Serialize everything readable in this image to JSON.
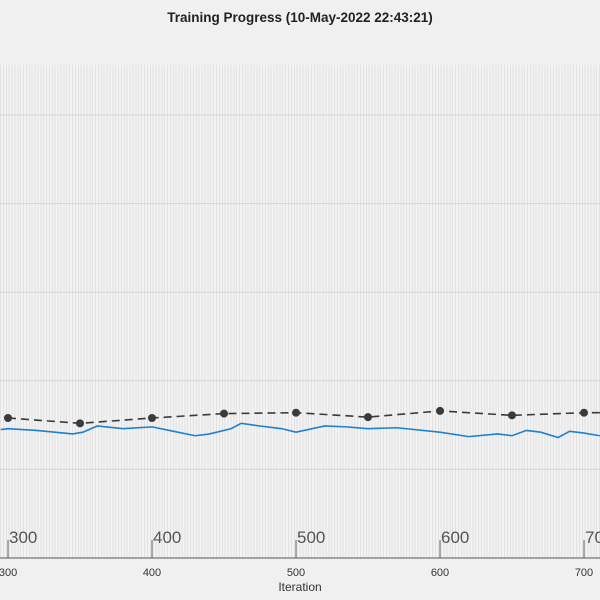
{
  "title": "Training Progress (10-May-2022 22:43:21)",
  "chart_data": {
    "type": "line",
    "title": "Training Progress (10-May-2022 22:43:21)",
    "xlabel": "Iteration",
    "ylabel": "",
    "xlim": [
      295,
      711
    ],
    "ylim": [
      0,
      5.56
    ],
    "y_ticks_unlabeled": [
      1,
      2,
      3,
      4,
      5
    ],
    "x_ticks": [
      300,
      400,
      500,
      600,
      700
    ],
    "grid": true,
    "series": [
      {
        "style": "solid",
        "color": "#1f7fd0",
        "x": [
          295,
          300,
          320,
          345,
          352,
          362,
          380,
          400,
          415,
          430,
          440,
          455,
          462,
          475,
          490,
          500,
          520,
          535,
          550,
          570,
          600,
          620,
          640,
          650,
          660,
          670,
          682,
          690,
          700,
          711
        ],
        "y": [
          1.45,
          1.46,
          1.44,
          1.4,
          1.42,
          1.49,
          1.46,
          1.48,
          1.43,
          1.38,
          1.4,
          1.46,
          1.52,
          1.49,
          1.46,
          1.42,
          1.49,
          1.48,
          1.46,
          1.47,
          1.42,
          1.37,
          1.4,
          1.38,
          1.44,
          1.42,
          1.36,
          1.43,
          1.41,
          1.38
        ]
      },
      {
        "style": "dashed-markers",
        "color": "#3a3a3a",
        "x": [
          300,
          350,
          400,
          450,
          500,
          550,
          600,
          650,
          700
        ],
        "y": [
          1.58,
          1.52,
          1.58,
          1.63,
          1.64,
          1.59,
          1.66,
          1.61,
          1.64
        ]
      }
    ]
  }
}
